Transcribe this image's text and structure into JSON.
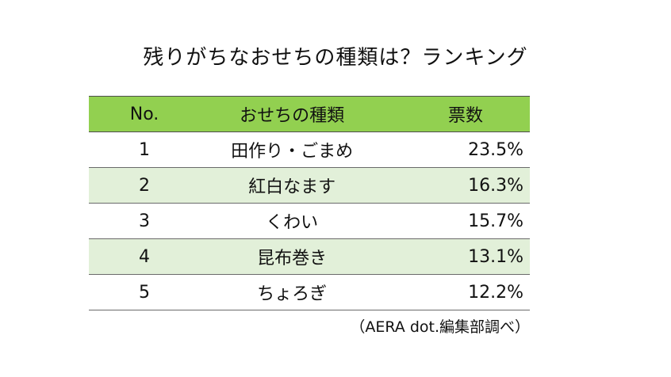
{
  "chart_data": {
    "type": "table",
    "title": "残りがちなおせちの種類は？ランキング",
    "columns": [
      "No.",
      "おせちの種類",
      "票数"
    ],
    "rows": [
      {
        "no": "1",
        "name": "田作り・ごまめ",
        "pct": "23.5%"
      },
      {
        "no": "2",
        "name": "紅白なます",
        "pct": "16.3%"
      },
      {
        "no": "3",
        "name": "くわい",
        "pct": "15.7%"
      },
      {
        "no": "4",
        "name": "昆布巻き",
        "pct": "13.1%"
      },
      {
        "no": "5",
        "name": "ちょろぎ",
        "pct": "12.2%"
      }
    ],
    "values": [
      23.5,
      16.3,
      15.7,
      13.1,
      12.2
    ],
    "source": "（AERA dot.編集部調べ）"
  },
  "colors": {
    "header": "#92d050",
    "alt_row": "#e2f0d9"
  }
}
